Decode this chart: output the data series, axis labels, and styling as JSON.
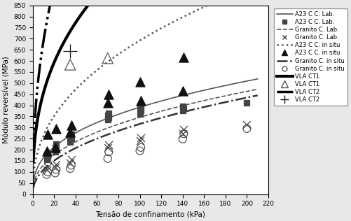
{
  "xlabel": "Tensão de confinamento (kPa)",
  "ylabel": "Módulo reversível (MPa)",
  "xlim": [
    0,
    220
  ],
  "ylim": [
    0,
    850
  ],
  "xticks": [
    0,
    20,
    40,
    60,
    80,
    100,
    120,
    140,
    160,
    180,
    200,
    220
  ],
  "yticks": [
    0,
    50,
    100,
    150,
    200,
    250,
    300,
    350,
    400,
    450,
    500,
    550,
    600,
    650,
    700,
    750,
    800,
    850
  ],
  "figsize": [
    5.01,
    3.16
  ],
  "dpi": 100,
  "background_color": "#e8e8e8",
  "plot_bg": "#ffffff",
  "curves": [
    {
      "label": "A23 C C. Lab.",
      "k": 68,
      "n": 0.38,
      "ls": "-",
      "lw": 1.2,
      "color": "#555555"
    },
    {
      "label": "Granito C. Lab.",
      "k": 50,
      "n": 0.42,
      "ls": "--",
      "lw": 1.2,
      "color": "#555555"
    },
    {
      "label": "A23 C C. in situ",
      "k": 100,
      "n": 0.42,
      "ls": ":",
      "lw": 1.8,
      "color": "#555555"
    },
    {
      "label": "Granito C. in situ",
      "k": 38,
      "n": 0.46,
      "ls": "dashdot_long",
      "lw": 1.8,
      "color": "#333333"
    },
    {
      "label": "VLA CT1",
      "k": 190,
      "n": 0.38,
      "ls": "-",
      "lw": 3.0,
      "color": "#000000"
    },
    {
      "label": "VLA CT2",
      "k": 250,
      "n": 0.44,
      "ls": "dashdotdot",
      "lw": 2.5,
      "color": "#000000"
    }
  ],
  "scatter_groups": [
    {
      "label": "A23 C C. Lab.",
      "marker": "s",
      "ms": 4,
      "color": "#444444",
      "fill": true,
      "x": [
        13,
        13,
        14,
        14,
        21,
        21,
        22,
        22,
        35,
        35,
        36,
        36,
        70,
        70,
        71,
        71,
        100,
        100,
        101,
        101,
        140,
        140,
        141,
        200
      ],
      "y": [
        155,
        175,
        165,
        185,
        190,
        210,
        200,
        225,
        235,
        255,
        250,
        270,
        335,
        355,
        345,
        365,
        360,
        385,
        375,
        395,
        375,
        395,
        385,
        410
      ]
    },
    {
      "label": "Granito C. Lab.",
      "marker": "x",
      "ms": 5,
      "color": "#444444",
      "fill": true,
      "x": [
        13,
        14,
        21,
        22,
        35,
        36,
        70,
        71,
        100,
        101,
        140,
        141,
        200
      ],
      "y": [
        108,
        120,
        120,
        135,
        140,
        155,
        210,
        222,
        240,
        255,
        272,
        292,
        315
      ]
    },
    {
      "label": "A23 C C. in situ",
      "marker": "^",
      "ms": 6,
      "color": "#111111",
      "fill": true,
      "x": [
        13,
        14,
        21,
        22,
        35,
        36,
        70,
        71,
        100,
        101,
        140,
        141
      ],
      "y": [
        195,
        270,
        210,
        295,
        280,
        310,
        410,
        450,
        505,
        420,
        465,
        615
      ]
    },
    {
      "label": "Granito C. in situ",
      "marker": "o",
      "ms": 5,
      "color": "#555555",
      "fill": false,
      "x": [
        13,
        14,
        21,
        22,
        35,
        36,
        70,
        71,
        100,
        101,
        140,
        141,
        200
      ],
      "y": [
        88,
        100,
        95,
        110,
        115,
        130,
        160,
        190,
        195,
        210,
        248,
        272,
        295
      ]
    },
    {
      "label": "VLA CT1",
      "marker": "^",
      "ms": 7,
      "color": "#555555",
      "fill": false,
      "x": [
        35,
        70
      ],
      "y": [
        583,
        612
      ]
    },
    {
      "label": "VLA CT2",
      "marker": "+",
      "ms": 9,
      "color": "#111111",
      "fill": true,
      "x": [
        35
      ],
      "y": [
        645
      ]
    }
  ],
  "legend_entries": [
    {
      "type": "line",
      "ls": "-",
      "lw": 1.2,
      "color": "#555555",
      "label": "A23 C C. Lab."
    },
    {
      "type": "marker",
      "marker": "s",
      "ms": 4,
      "color": "#444444",
      "fill": true,
      "label": "A23 C C. Lab."
    },
    {
      "type": "line",
      "ls": "--",
      "lw": 1.2,
      "color": "#555555",
      "label": "Granito C. Lab."
    },
    {
      "type": "marker",
      "marker": "x",
      "ms": 5,
      "color": "#444444",
      "fill": true,
      "label": "Granito C. Lab."
    },
    {
      "type": "line",
      "ls": ":",
      "lw": 1.8,
      "color": "#555555",
      "label": "A23 C C. in situ"
    },
    {
      "type": "marker",
      "marker": "^",
      "ms": 6,
      "color": "#111111",
      "fill": true,
      "label": "A23 C C. in situ"
    },
    {
      "type": "line",
      "ls": "dashdot_long",
      "lw": 1.8,
      "color": "#333333",
      "label": "Granito C. in situ"
    },
    {
      "type": "marker",
      "marker": "o",
      "ms": 5,
      "color": "#555555",
      "fill": false,
      "label": "Granito C. in situ"
    },
    {
      "type": "line",
      "ls": "-",
      "lw": 3.0,
      "color": "#000000",
      "label": "VLA CT1"
    },
    {
      "type": "marker",
      "marker": "^",
      "ms": 7,
      "color": "#555555",
      "fill": false,
      "label": "VLA CT1"
    },
    {
      "type": "line",
      "ls": "dashdotdot",
      "lw": 2.5,
      "color": "#000000",
      "label": "VLA CT2"
    },
    {
      "type": "marker",
      "marker": "+",
      "ms": 9,
      "color": "#111111",
      "fill": true,
      "label": "VLA CT2"
    }
  ]
}
